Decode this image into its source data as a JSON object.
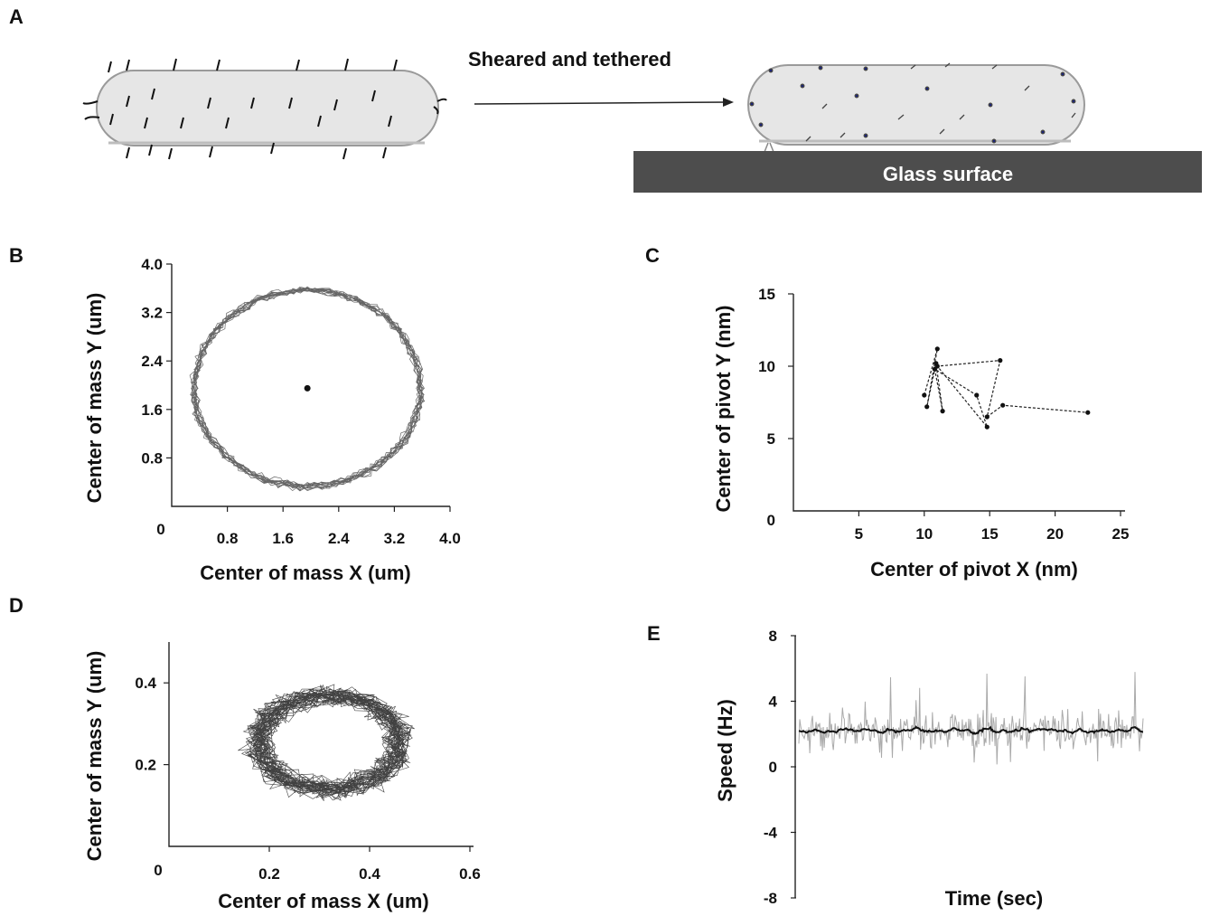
{
  "panel_a": {
    "label": "A",
    "arrow_label": "Sheared and  tethered",
    "surface_label": "Glass surface"
  },
  "chart_data": [
    {
      "panel": "B",
      "type": "scatter",
      "xlabel": "Center of mass X (um)",
      "ylabel": "Center of mass Y (um)",
      "xticks": [
        "0",
        "0.8",
        "1.6",
        "2.4",
        "3.2",
        "4.0"
      ],
      "yticks": [
        "0.8",
        "1.6",
        "2.4",
        "3.2",
        "4.0"
      ],
      "xlim": [
        0,
        4.0
      ],
      "ylim": [
        0,
        4.0
      ],
      "trajectory": {
        "shape": "ring",
        "center": [
          1.95,
          1.95
        ],
        "radius_x": 1.62,
        "radius_y": 1.62,
        "band": 0.1
      },
      "center_point": {
        "x": 1.95,
        "y": 1.95
      }
    },
    {
      "panel": "C",
      "type": "line",
      "xlabel": "Center of pivot X (nm)",
      "ylabel": "Center of pivot Y (nm)",
      "xticks": [
        "5",
        "10",
        "15",
        "20",
        "25"
      ],
      "yticks": [
        "0",
        "5",
        "10",
        "15"
      ],
      "xlim": [
        0,
        25
      ],
      "ylim": [
        0,
        15
      ],
      "points": [
        {
          "x": 10.0,
          "y": 8.0
        },
        {
          "x": 11.0,
          "y": 11.2
        },
        {
          "x": 10.2,
          "y": 7.2
        },
        {
          "x": 10.9,
          "y": 10.2
        },
        {
          "x": 11.4,
          "y": 6.9
        },
        {
          "x": 10.8,
          "y": 9.8
        },
        {
          "x": 14.0,
          "y": 8.0
        },
        {
          "x": 14.8,
          "y": 5.8
        },
        {
          "x": 11.0,
          "y": 10.0
        },
        {
          "x": 15.8,
          "y": 10.4
        },
        {
          "x": 14.8,
          "y": 6.5
        },
        {
          "x": 16.0,
          "y": 7.3
        },
        {
          "x": 22.5,
          "y": 6.8
        }
      ]
    },
    {
      "panel": "D",
      "type": "scatter",
      "xlabel": "Center of mass X (um)",
      "ylabel": "Center of mass  Y (um)",
      "xticks": [
        "0",
        "0.2",
        "0.4",
        "0.6"
      ],
      "yticks": [
        "0.2",
        "0.4"
      ],
      "xlim": [
        0,
        0.6
      ],
      "ylim": [
        0,
        0.5
      ],
      "trajectory": {
        "shape": "ring",
        "center": [
          0.32,
          0.255
        ],
        "radius_x": 0.14,
        "radius_y": 0.115,
        "band": 0.045
      }
    },
    {
      "panel": "E",
      "type": "line",
      "xlabel": "Time (sec)",
      "ylabel": "Speed (Hz)",
      "yticks": [
        "8",
        "4",
        "0",
        "-4",
        "-8"
      ],
      "ylim": [
        -8,
        8
      ],
      "series": [
        {
          "role": "raw",
          "mean": 2.2,
          "spread": 3.0,
          "color": "#aaaaaa"
        },
        {
          "role": "smoothed",
          "mean": 2.2,
          "spread": 0.3,
          "color": "#111111"
        }
      ]
    }
  ]
}
